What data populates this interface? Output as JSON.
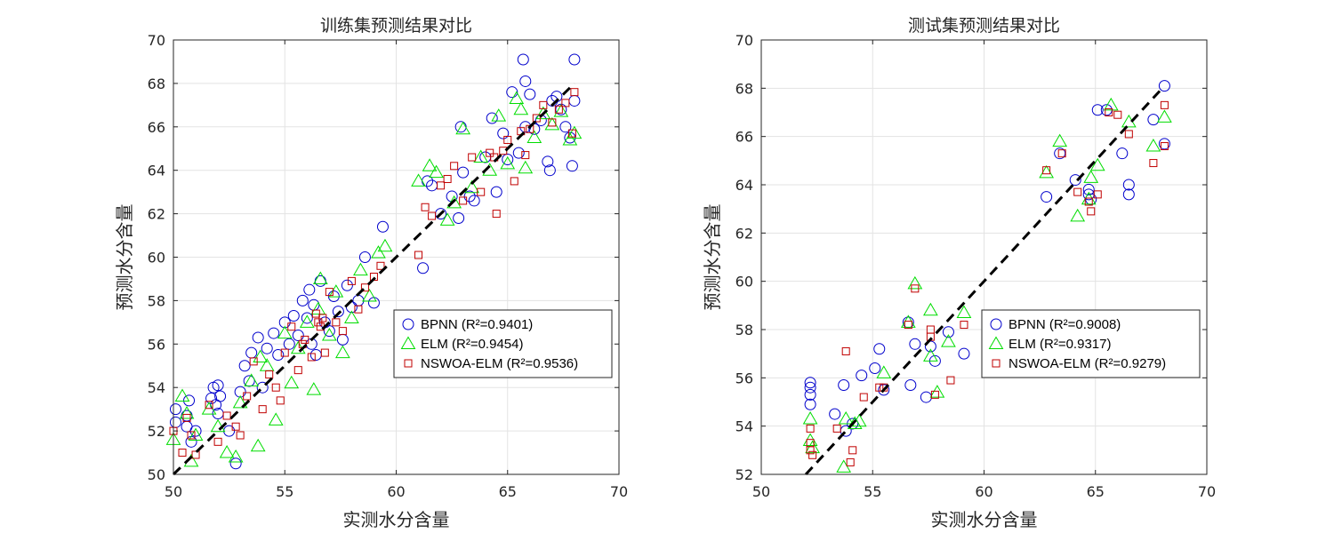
{
  "colors": {
    "BPNN": "#0000cc",
    "ELM": "#00dd00",
    "NSWOA-ELM": "#c00000",
    "grid": "#e3e3e3",
    "axis": "#262626",
    "ref": "#000000"
  },
  "chart_data": [
    {
      "type": "scatter",
      "title": "训练集预测结果对比",
      "xlabel": "实测水分含量",
      "ylabel": "预测水分含量",
      "xlim": [
        50,
        70
      ],
      "ylim": [
        50,
        70
      ],
      "xticks": [
        50,
        55,
        60,
        65,
        70
      ],
      "yticks": [
        50,
        52,
        54,
        56,
        58,
        60,
        62,
        64,
        66,
        68,
        70
      ],
      "grid": true,
      "legend_position": "lower-right",
      "reference_line": "y = x (dashed)",
      "series": [
        {
          "name": "BPNN",
          "legend": "BPNN (R²=0.9401)",
          "marker": "circle",
          "x": [
            50.1,
            50.1,
            50.6,
            50.6,
            50.7,
            50.8,
            51.0,
            51.7,
            51.8,
            51.9,
            52.0,
            52.0,
            52.1,
            52.5,
            52.8,
            53.0,
            53.2,
            53.4,
            53.5,
            53.8,
            54.0,
            54.2,
            54.5,
            54.7,
            55.0,
            55.2,
            55.4,
            55.6,
            55.8,
            56.0,
            56.1,
            56.2,
            56.3,
            56.4,
            56.6,
            56.8,
            57.0,
            57.2,
            57.4,
            57.6,
            57.8,
            58.0,
            58.3,
            58.6,
            59.0,
            59.4,
            61.2,
            61.4,
            61.6,
            62.0,
            62.5,
            62.8,
            63.0,
            63.5,
            64.0,
            64.3,
            64.5,
            64.8,
            65.0,
            65.2,
            65.5,
            65.7,
            65.8,
            66.0,
            66.2,
            66.5,
            66.8,
            67.0,
            67.2,
            67.4,
            67.6,
            67.8,
            68.0,
            68.0,
            65.8,
            66.9,
            67.9,
            63.3,
            62.9
          ],
          "y": [
            52.4,
            53.0,
            52.2,
            52.7,
            53.4,
            51.5,
            52.0,
            53.5,
            54.0,
            53.2,
            52.8,
            54.1,
            53.6,
            52.0,
            50.5,
            53.8,
            55.0,
            54.3,
            55.6,
            56.3,
            54.0,
            55.8,
            56.5,
            55.5,
            57.0,
            56.0,
            57.3,
            56.4,
            58.0,
            57.2,
            58.5,
            56.0,
            57.8,
            55.5,
            58.9,
            57.0,
            56.6,
            58.2,
            57.5,
            56.2,
            58.7,
            57.7,
            58.0,
            60.0,
            57.9,
            61.4,
            59.5,
            63.5,
            63.3,
            62.0,
            62.8,
            61.8,
            63.9,
            62.6,
            64.6,
            66.4,
            63.0,
            65.7,
            64.5,
            67.6,
            64.8,
            69.1,
            66.0,
            67.5,
            65.9,
            66.3,
            64.4,
            67.2,
            67.4,
            66.8,
            66.0,
            65.5,
            67.2,
            69.1,
            68.1,
            64.0,
            64.2,
            62.8,
            66.0
          ]
        },
        {
          "name": "ELM",
          "legend": "ELM (R²=0.9454)",
          "marker": "triangle",
          "x": [
            50.0,
            50.4,
            50.6,
            50.8,
            51.0,
            51.6,
            52.0,
            52.4,
            52.8,
            53.0,
            53.5,
            53.8,
            54.2,
            54.6,
            55.0,
            55.3,
            55.6,
            56.0,
            56.3,
            56.6,
            57.0,
            57.3,
            57.6,
            58.0,
            58.4,
            58.8,
            59.2,
            59.5,
            61.0,
            61.5,
            61.8,
            62.3,
            62.6,
            63.0,
            63.4,
            63.8,
            64.2,
            64.6,
            65.0,
            65.4,
            65.8,
            66.2,
            66.6,
            67.0,
            67.4,
            67.8,
            68.0,
            53.9,
            56.5,
            65.6
          ],
          "y": [
            51.6,
            53.6,
            52.8,
            50.6,
            51.8,
            53.0,
            52.2,
            51.0,
            50.8,
            53.3,
            54.3,
            51.3,
            55.0,
            52.5,
            56.5,
            54.2,
            55.8,
            57.0,
            53.9,
            59.0,
            56.4,
            58.4,
            55.6,
            57.2,
            59.4,
            58.2,
            60.2,
            60.5,
            63.5,
            64.2,
            63.9,
            61.7,
            62.5,
            65.9,
            63.2,
            64.6,
            64.0,
            66.5,
            64.3,
            67.3,
            64.1,
            65.5,
            66.6,
            66.1,
            66.7,
            65.4,
            65.7,
            55.4,
            57.6,
            66.8
          ]
        },
        {
          "name": "NSWOA-ELM",
          "legend": "NSWOA-ELM (R²=0.9536)",
          "marker": "square",
          "x": [
            50.0,
            50.4,
            50.6,
            50.8,
            51.0,
            51.6,
            52.0,
            52.4,
            52.8,
            53.0,
            53.3,
            53.6,
            54.0,
            54.3,
            54.6,
            55.0,
            55.3,
            55.6,
            55.9,
            56.2,
            56.4,
            56.5,
            56.6,
            56.7,
            56.8,
            57.0,
            57.3,
            57.6,
            58.0,
            58.3,
            58.6,
            59.0,
            59.3,
            61.0,
            61.3,
            61.6,
            62.0,
            62.3,
            62.6,
            63.0,
            63.4,
            63.8,
            64.2,
            64.5,
            64.8,
            65.0,
            65.3,
            65.6,
            65.8,
            66.0,
            66.3,
            66.6,
            67.0,
            67.3,
            67.6,
            67.9,
            68.0,
            55.8,
            54.8,
            64.4
          ],
          "y": [
            52.0,
            51.0,
            52.6,
            51.8,
            50.9,
            53.2,
            51.5,
            52.7,
            52.2,
            51.8,
            53.6,
            55.2,
            53.0,
            54.6,
            54.0,
            55.6,
            56.8,
            54.8,
            56.2,
            55.4,
            57.4,
            57.0,
            56.8,
            57.2,
            55.6,
            58.4,
            57.0,
            56.6,
            58.9,
            57.6,
            58.6,
            59.1,
            59.6,
            60.1,
            62.3,
            61.9,
            63.3,
            63.6,
            64.2,
            62.6,
            64.6,
            63.0,
            64.8,
            62.0,
            64.9,
            65.4,
            63.5,
            65.8,
            64.7,
            65.9,
            66.4,
            67.0,
            66.2,
            66.8,
            67.1,
            65.7,
            67.6,
            56.0,
            53.4,
            64.6
          ]
        }
      ]
    },
    {
      "type": "scatter",
      "title": "测试集预测结果对比",
      "xlabel": "实测水分含量",
      "ylabel": "预测水分含量",
      "xlim": [
        50,
        70
      ],
      "ylim": [
        52,
        70
      ],
      "xticks": [
        50,
        55,
        60,
        65,
        70
      ],
      "yticks": [
        52,
        54,
        56,
        58,
        60,
        62,
        64,
        66,
        68,
        70
      ],
      "grid": true,
      "legend_position": "lower-right",
      "reference_line": "y = x (dashed)",
      "series": [
        {
          "name": "BPNN",
          "legend": "BPNN (R²=0.9008)",
          "marker": "circle",
          "x": [
            52.2,
            52.2,
            52.2,
            52.2,
            53.3,
            53.7,
            53.8,
            54.1,
            54.5,
            55.1,
            55.3,
            55.5,
            56.6,
            56.7,
            56.9,
            57.4,
            57.6,
            57.8,
            58.4,
            59.1,
            62.8,
            63.4,
            64.1,
            64.7,
            64.7,
            64.8,
            65.1,
            65.5,
            66.2,
            66.5,
            66.5,
            67.6,
            68.1,
            68.1
          ],
          "y": [
            55.8,
            55.6,
            55.3,
            54.9,
            54.5,
            55.7,
            53.8,
            54.1,
            56.1,
            56.4,
            57.2,
            55.5,
            58.3,
            55.7,
            57.4,
            55.2,
            57.3,
            56.7,
            57.9,
            57.0,
            63.5,
            65.3,
            64.2,
            63.6,
            63.8,
            63.4,
            67.1,
            67.1,
            65.3,
            64.0,
            63.6,
            66.7,
            68.1,
            65.7
          ],
          "xy_hidden": []
        },
        {
          "name": "ELM",
          "legend": "ELM (R²=0.9317)",
          "marker": "triangle",
          "x": [
            52.2,
            52.2,
            52.3,
            53.7,
            53.8,
            54.2,
            54.4,
            55.5,
            56.6,
            56.9,
            57.6,
            57.6,
            57.9,
            58.4,
            59.1,
            62.8,
            63.4,
            64.2,
            64.7,
            64.8,
            65.1,
            65.7,
            66.5,
            67.6,
            68.1
          ],
          "y": [
            54.3,
            53.4,
            53.1,
            52.3,
            54.3,
            54.1,
            54.2,
            56.2,
            58.3,
            59.9,
            58.8,
            56.9,
            55.4,
            57.5,
            58.7,
            64.5,
            65.8,
            62.7,
            63.4,
            64.3,
            64.8,
            67.3,
            66.6,
            65.6,
            66.8
          ]
        },
        {
          "name": "NSWOA-ELM",
          "legend": "NSWOA-ELM (R²=0.9279)",
          "marker": "square",
          "x": [
            52.2,
            52.2,
            52.2,
            52.3,
            53.4,
            53.8,
            54.0,
            54.1,
            54.6,
            55.3,
            55.5,
            56.6,
            56.9,
            57.6,
            57.6,
            57.8,
            58.5,
            59.1,
            62.8,
            63.5,
            64.2,
            64.7,
            64.8,
            65.1,
            65.6,
            66.0,
            66.5,
            67.6,
            68.1,
            68.1
          ],
          "y": [
            53.9,
            53.3,
            53.0,
            52.8,
            53.9,
            57.1,
            52.5,
            53.0,
            55.2,
            55.6,
            55.6,
            58.2,
            59.7,
            58.0,
            57.7,
            55.3,
            55.9,
            58.2,
            64.6,
            65.3,
            63.7,
            63.3,
            62.9,
            63.6,
            67.0,
            66.9,
            66.1,
            64.9,
            67.3,
            65.6
          ]
        }
      ]
    }
  ]
}
